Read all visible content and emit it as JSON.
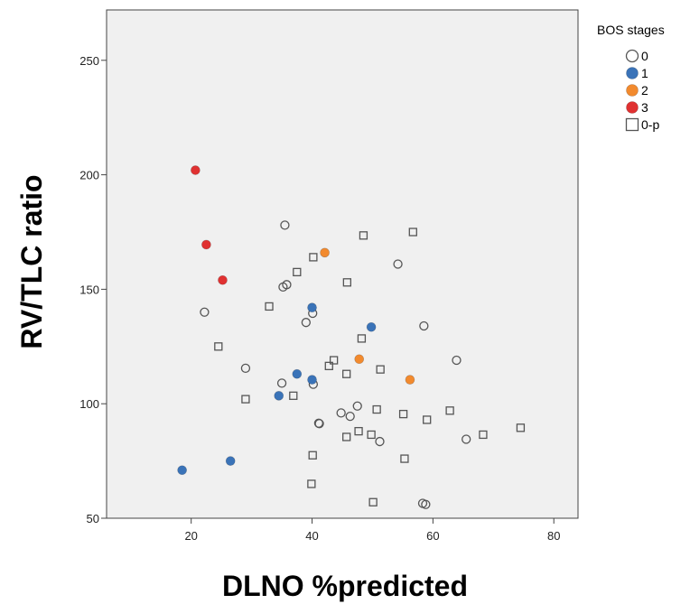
{
  "chart_data": {
    "type": "scatter",
    "xlabel": "DLNO %predicted",
    "ylabel": "RV/TLC ratio",
    "xlim": [
      6,
      84
    ],
    "ylim": [
      50,
      272
    ],
    "x_ticks": [
      20,
      40,
      60,
      80
    ],
    "y_ticks": [
      50,
      100,
      150,
      200,
      250
    ],
    "grid": false,
    "legend_title": "BOS stages",
    "legend_position": "top-right",
    "series": [
      {
        "name": "0",
        "marker": "circle-open",
        "color": "#555555",
        "points": [
          [
            35.5,
            178
          ],
          [
            35.2,
            151
          ],
          [
            35.8,
            152
          ],
          [
            22.2,
            140
          ],
          [
            40.1,
            139.5
          ],
          [
            39.0,
            135.5
          ],
          [
            54.2,
            161
          ],
          [
            58.5,
            134
          ],
          [
            63.9,
            119
          ],
          [
            29.0,
            115.5
          ],
          [
            35.0,
            109
          ],
          [
            40.2,
            108.5
          ],
          [
            47.5,
            99
          ],
          [
            44.8,
            96
          ],
          [
            46.3,
            94.5
          ],
          [
            41.1,
            91.5
          ],
          [
            41.2,
            91.3
          ],
          [
            51.2,
            83.5
          ],
          [
            65.5,
            84.5
          ],
          [
            58.3,
            56.5
          ],
          [
            58.8,
            56
          ]
        ]
      },
      {
        "name": "1",
        "marker": "circle-filled",
        "color": "#3a73b8",
        "points": [
          [
            40.0,
            142
          ],
          [
            49.8,
            133.5
          ],
          [
            37.5,
            113
          ],
          [
            40.0,
            110.5
          ],
          [
            34.5,
            103.5
          ],
          [
            26.5,
            75
          ],
          [
            18.5,
            71
          ]
        ]
      },
      {
        "name": "2",
        "marker": "circle-filled",
        "color": "#f28a2e",
        "points": [
          [
            42.1,
            166
          ],
          [
            47.8,
            119.5
          ],
          [
            56.2,
            110.5
          ]
        ]
      },
      {
        "name": "3",
        "marker": "circle-filled",
        "color": "#e03131",
        "points": [
          [
            20.7,
            202
          ],
          [
            22.5,
            169.5
          ],
          [
            25.2,
            154
          ]
        ]
      },
      {
        "name": "0-p",
        "marker": "square-open",
        "color": "#555555",
        "points": [
          [
            48.5,
            173.5
          ],
          [
            56.7,
            175
          ],
          [
            40.2,
            164
          ],
          [
            37.5,
            157.5
          ],
          [
            45.8,
            153
          ],
          [
            32.9,
            142.5
          ],
          [
            24.5,
            125
          ],
          [
            48.2,
            128.5
          ],
          [
            43.6,
            119
          ],
          [
            42.8,
            116.5
          ],
          [
            51.3,
            115
          ],
          [
            45.7,
            113
          ],
          [
            36.9,
            103.5
          ],
          [
            29.0,
            102
          ],
          [
            50.7,
            97.5
          ],
          [
            62.8,
            97
          ],
          [
            55.1,
            95.5
          ],
          [
            59.0,
            93
          ],
          [
            47.7,
            88
          ],
          [
            49.8,
            86.5
          ],
          [
            45.7,
            85.5
          ],
          [
            68.3,
            86.5
          ],
          [
            74.5,
            89.5
          ],
          [
            40.1,
            77.5
          ],
          [
            55.3,
            76
          ],
          [
            39.9,
            65
          ],
          [
            50.1,
            57
          ]
        ]
      }
    ]
  }
}
